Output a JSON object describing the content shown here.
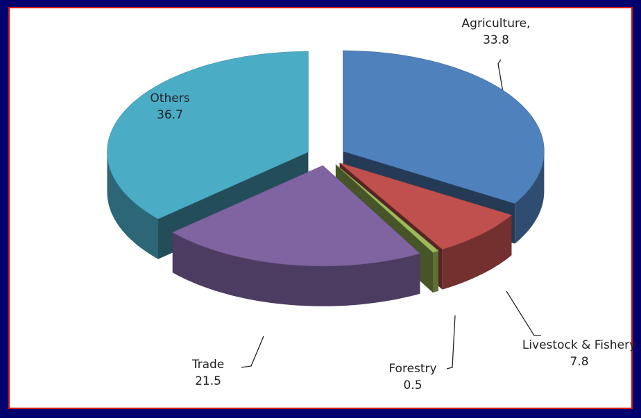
{
  "chart_data": {
    "type": "pie",
    "categories": [
      "Agriculture,",
      "Livestock & Fishery",
      "Forestry",
      "Trade",
      "Others"
    ],
    "values": [
      33.8,
      7.8,
      0.5,
      21.5,
      36.7
    ],
    "colors": [
      "#4f81bd",
      "#c0504d",
      "#9bbb59",
      "#8064a2",
      "#4bacc6"
    ]
  }
}
